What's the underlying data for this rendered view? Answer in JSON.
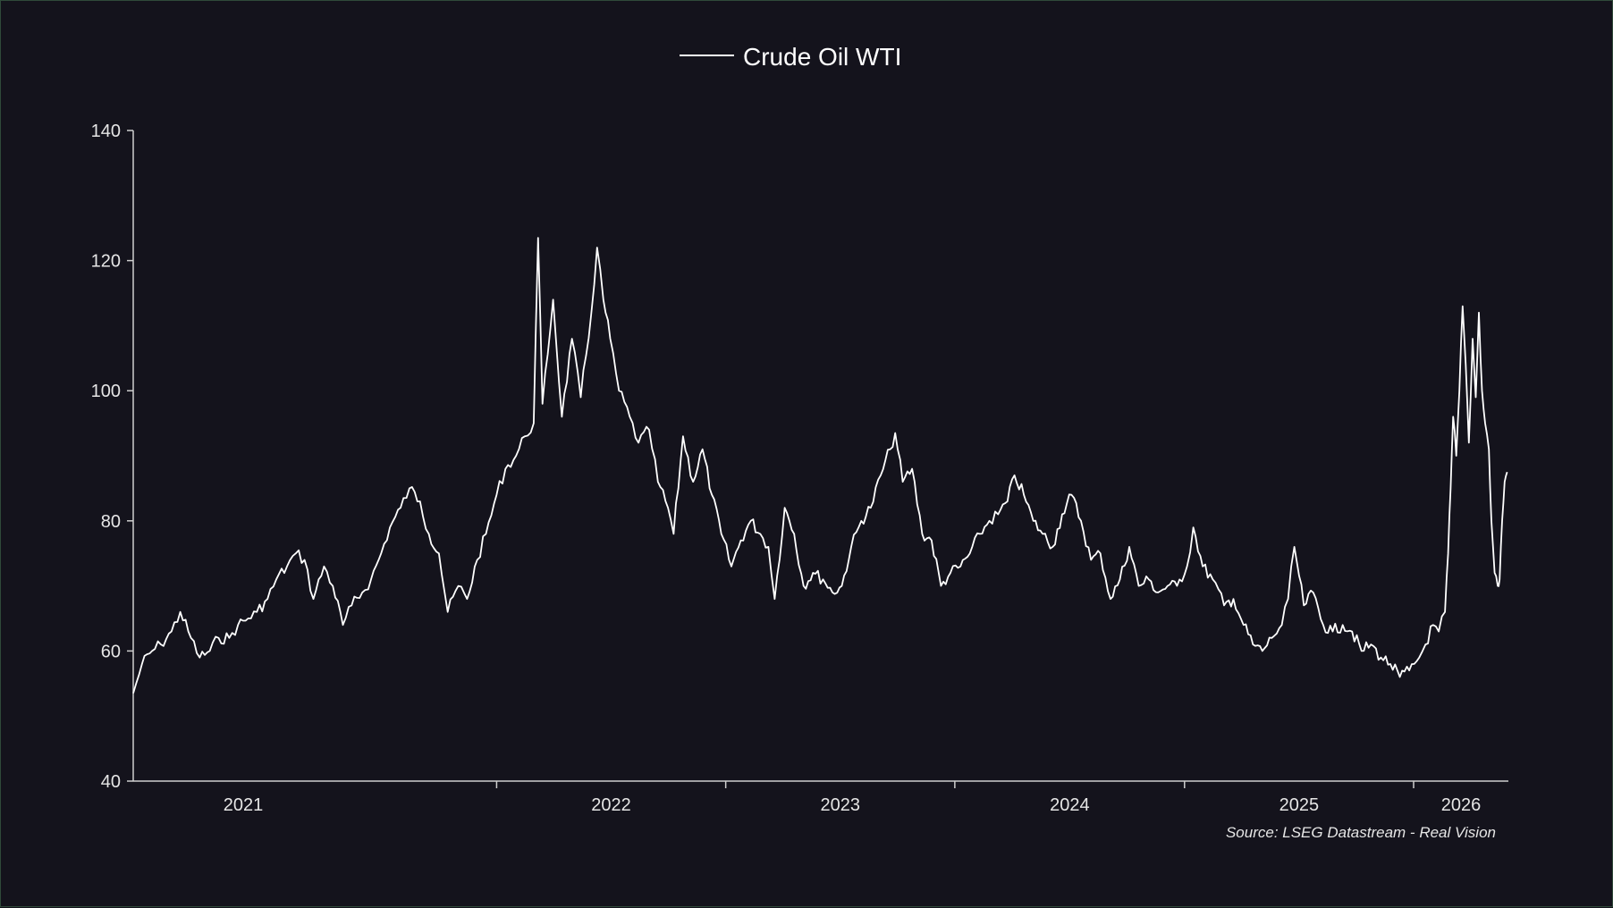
{
  "colors": {
    "background": "#14131c",
    "line": "#ffffff",
    "axis": "#cfcfcf",
    "text": "#e6e6e6",
    "border": "#2f4a3a"
  },
  "chart_data": {
    "type": "line",
    "title": "",
    "xlabel": "",
    "ylabel": "",
    "ylim": [
      40,
      140
    ],
    "xlim": [
      "2020-06-01",
      "2026-06-01"
    ],
    "yticks": [
      40,
      60,
      80,
      100,
      120,
      140
    ],
    "xticks": [
      {
        "label": "2021",
        "date": "2021-01-01"
      },
      {
        "label": "2022",
        "date": "2022-01-01"
      },
      {
        "label": "2023",
        "date": "2023-01-01"
      },
      {
        "label": "2024",
        "date": "2024-01-01"
      },
      {
        "label": "2025",
        "date": "2025-01-01"
      },
      {
        "label": "2026",
        "date": "2026-01-01"
      }
    ],
    "grid": false,
    "legend_position": "top-center",
    "source": "Source: LSEG Datastream - Real Vision",
    "series": [
      {
        "name": "Crude Oil WTI",
        "points": [
          [
            "2020-06-01",
            53.5
          ],
          [
            "2020-06-15",
            58
          ],
          [
            "2020-07-01",
            60
          ],
          [
            "2020-07-15",
            61
          ],
          [
            "2020-08-01",
            63
          ],
          [
            "2020-08-15",
            66
          ],
          [
            "2020-09-01",
            62
          ],
          [
            "2020-09-15",
            59
          ],
          [
            "2020-10-01",
            60
          ],
          [
            "2020-10-15",
            62
          ],
          [
            "2020-11-01",
            62
          ],
          [
            "2020-11-15",
            64
          ],
          [
            "2020-12-01",
            65
          ],
          [
            "2020-12-15",
            66
          ],
          [
            "2021-01-01",
            68
          ],
          [
            "2021-01-15",
            71
          ],
          [
            "2021-02-01",
            73
          ],
          [
            "2021-02-15",
            75
          ],
          [
            "2021-03-01",
            74
          ],
          [
            "2021-03-15",
            68
          ],
          [
            "2021-04-01",
            73
          ],
          [
            "2021-04-15",
            70
          ],
          [
            "2021-05-01",
            64
          ],
          [
            "2021-05-15",
            67
          ],
          [
            "2021-06-01",
            69
          ],
          [
            "2021-06-15",
            71
          ],
          [
            "2021-07-01",
            75
          ],
          [
            "2021-07-15",
            79
          ],
          [
            "2021-08-01",
            82
          ],
          [
            "2021-08-15",
            85
          ],
          [
            "2021-09-01",
            83
          ],
          [
            "2021-09-15",
            78
          ],
          [
            "2021-10-01",
            75
          ],
          [
            "2021-10-15",
            66
          ],
          [
            "2021-11-01",
            70
          ],
          [
            "2021-11-15",
            68
          ],
          [
            "2021-12-01",
            74
          ],
          [
            "2021-12-15",
            78
          ],
          [
            "2022-01-01",
            84
          ],
          [
            "2022-01-15",
            88
          ],
          [
            "2022-02-01",
            90
          ],
          [
            "2022-02-15",
            93
          ],
          [
            "2022-03-01",
            95
          ],
          [
            "2022-03-08",
            123.5
          ],
          [
            "2022-03-15",
            98
          ],
          [
            "2022-04-01",
            114
          ],
          [
            "2022-04-15",
            96
          ],
          [
            "2022-05-01",
            108
          ],
          [
            "2022-05-15",
            99
          ],
          [
            "2022-06-01",
            112
          ],
          [
            "2022-06-10",
            122
          ],
          [
            "2022-06-20",
            114
          ],
          [
            "2022-07-01",
            108
          ],
          [
            "2022-07-15",
            100
          ],
          [
            "2022-08-01",
            96
          ],
          [
            "2022-08-15",
            92
          ],
          [
            "2022-09-01",
            94
          ],
          [
            "2022-09-15",
            86
          ],
          [
            "2022-10-01",
            82
          ],
          [
            "2022-10-10",
            78
          ],
          [
            "2022-10-25",
            93
          ],
          [
            "2022-11-10",
            86
          ],
          [
            "2022-11-25",
            91
          ],
          [
            "2022-12-10",
            84
          ],
          [
            "2022-12-25",
            78
          ],
          [
            "2023-01-10",
            73
          ],
          [
            "2023-01-25",
            77
          ],
          [
            "2023-02-10",
            80
          ],
          [
            "2023-02-25",
            78
          ],
          [
            "2023-03-10",
            76
          ],
          [
            "2023-03-20",
            68
          ],
          [
            "2023-04-05",
            82
          ],
          [
            "2023-04-20",
            78
          ],
          [
            "2023-05-05",
            70
          ],
          [
            "2023-05-20",
            72
          ],
          [
            "2023-06-05",
            71
          ],
          [
            "2023-06-20",
            69
          ],
          [
            "2023-07-05",
            70
          ],
          [
            "2023-07-20",
            76
          ],
          [
            "2023-08-05",
            80
          ],
          [
            "2023-08-20",
            82
          ],
          [
            "2023-09-05",
            87
          ],
          [
            "2023-09-20",
            91
          ],
          [
            "2023-09-28",
            93.5
          ],
          [
            "2023-10-10",
            86
          ],
          [
            "2023-10-25",
            88
          ],
          [
            "2023-11-10",
            78
          ],
          [
            "2023-11-25",
            77
          ],
          [
            "2023-12-10",
            70
          ],
          [
            "2023-12-25",
            72
          ],
          [
            "2024-01-10",
            73
          ],
          [
            "2024-01-25",
            75
          ],
          [
            "2024-02-10",
            78
          ],
          [
            "2024-02-25",
            80
          ],
          [
            "2024-03-10",
            81
          ],
          [
            "2024-03-25",
            83
          ],
          [
            "2024-04-05",
            87
          ],
          [
            "2024-04-20",
            84
          ],
          [
            "2024-05-05",
            80
          ],
          [
            "2024-05-20",
            78
          ],
          [
            "2024-06-05",
            76
          ],
          [
            "2024-06-20",
            81
          ],
          [
            "2024-07-05",
            84
          ],
          [
            "2024-07-20",
            80
          ],
          [
            "2024-08-05",
            74
          ],
          [
            "2024-08-20",
            75
          ],
          [
            "2024-09-05",
            68
          ],
          [
            "2024-09-20",
            71
          ],
          [
            "2024-10-05",
            76
          ],
          [
            "2024-10-20",
            70
          ],
          [
            "2024-11-05",
            71
          ],
          [
            "2024-11-20",
            69
          ],
          [
            "2024-12-05",
            70
          ],
          [
            "2024-12-20",
            70
          ],
          [
            "2025-01-05",
            73
          ],
          [
            "2025-01-15",
            79
          ],
          [
            "2025-01-30",
            73
          ],
          [
            "2025-02-15",
            71
          ],
          [
            "2025-03-05",
            67
          ],
          [
            "2025-03-20",
            68
          ],
          [
            "2025-04-05",
            64
          ],
          [
            "2025-04-20",
            61
          ],
          [
            "2025-05-05",
            60
          ],
          [
            "2025-05-20",
            62
          ],
          [
            "2025-06-05",
            64
          ],
          [
            "2025-06-15",
            68
          ],
          [
            "2025-06-25",
            76
          ],
          [
            "2025-07-10",
            67
          ],
          [
            "2025-07-25",
            69
          ],
          [
            "2025-08-10",
            64
          ],
          [
            "2025-08-25",
            63
          ],
          [
            "2025-09-10",
            64
          ],
          [
            "2025-09-25",
            63
          ],
          [
            "2025-10-10",
            60
          ],
          [
            "2025-10-25",
            61
          ],
          [
            "2025-11-10",
            59
          ],
          [
            "2025-11-25",
            58
          ],
          [
            "2025-12-10",
            56
          ],
          [
            "2025-12-25",
            57
          ],
          [
            "2026-01-10",
            59
          ],
          [
            "2026-01-20",
            61
          ],
          [
            "2026-02-01",
            64
          ],
          [
            "2026-02-10",
            63
          ],
          [
            "2026-02-20",
            66
          ],
          [
            "2026-02-25",
            75
          ],
          [
            "2026-03-01",
            85
          ],
          [
            "2026-03-05",
            96
          ],
          [
            "2026-03-10",
            90
          ],
          [
            "2026-03-15",
            100
          ],
          [
            "2026-03-20",
            113
          ],
          [
            "2026-03-25",
            104
          ],
          [
            "2026-03-30",
            92
          ],
          [
            "2026-04-05",
            108
          ],
          [
            "2026-04-10",
            99
          ],
          [
            "2026-04-15",
            112
          ],
          [
            "2026-04-20",
            100
          ],
          [
            "2026-04-25",
            95
          ],
          [
            "2026-05-01",
            91
          ],
          [
            "2026-05-05",
            80
          ],
          [
            "2026-05-10",
            72
          ],
          [
            "2026-05-15",
            70
          ],
          [
            "2026-05-18",
            71
          ],
          [
            "2026-05-22",
            80
          ],
          [
            "2026-05-26",
            86
          ],
          [
            "2026-05-30",
            87.5
          ]
        ]
      }
    ]
  }
}
